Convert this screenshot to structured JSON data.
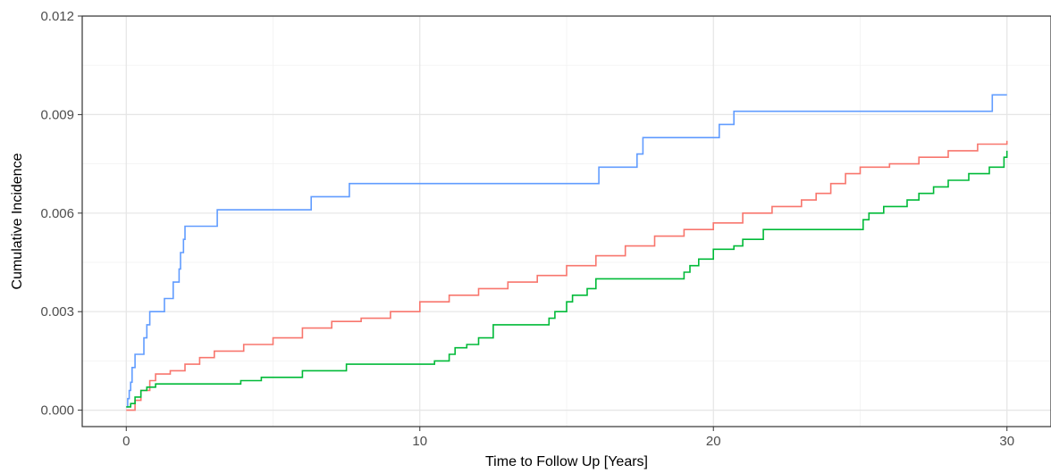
{
  "chart_data": {
    "type": "line",
    "step": true,
    "xlabel": "Time to Follow Up [Years]",
    "ylabel": "Cumulative Incidence",
    "xlim": [
      -1.5,
      31.5
    ],
    "ylim": [
      -0.0005,
      0.012
    ],
    "x_ticks": [
      0,
      10,
      20,
      30
    ],
    "x_tick_labels": [
      "0",
      "10",
      "20",
      "30"
    ],
    "y_ticks": [
      0,
      0.003,
      0.006,
      0.009,
      0.012
    ],
    "y_tick_labels": [
      "0.000",
      "0.003",
      "0.006",
      "0.009",
      "0.012"
    ],
    "grid": true,
    "legend": "none",
    "series": [
      {
        "color": "#619CFF",
        "x": [
          0,
          0.05,
          0.1,
          0.15,
          0.2,
          0.3,
          0.4,
          0.6,
          0.7,
          0.8,
          1.2,
          1.3,
          1.5,
          1.6,
          1.7,
          1.8,
          1.85,
          1.9,
          1.95,
          2.0,
          2.1,
          3.1,
          6.3,
          7.6,
          16.1,
          17.4,
          17.6,
          20.2,
          20.7,
          29.5,
          30.0
        ],
        "y": [
          0.0001,
          0.00035,
          0.0006,
          0.00085,
          0.0013,
          0.0017,
          0.0017,
          0.0022,
          0.0026,
          0.003,
          0.003,
          0.0034,
          0.0034,
          0.0039,
          0.0039,
          0.0043,
          0.0048,
          0.0048,
          0.0052,
          0.0056,
          0.0056,
          0.0061,
          0.0065,
          0.0069,
          0.0074,
          0.0078,
          0.0083,
          0.0087,
          0.0091,
          0.0096,
          0.0096
        ]
      },
      {
        "color": "#F8766D",
        "x": [
          0,
          0.3,
          0.5,
          0.8,
          1.0,
          1.5,
          2.0,
          2.5,
          3.0,
          4.0,
          5.0,
          6.0,
          7.0,
          8.0,
          9.0,
          10.0,
          11.0,
          12.0,
          13.0,
          14.0,
          15.0,
          16.0,
          17.0,
          18.0,
          19.0,
          20.0,
          21.0,
          22.0,
          23.0,
          23.5,
          24.0,
          24.5,
          25.0,
          26.0,
          27.0,
          28.0,
          29.0,
          30.0
        ],
        "y": [
          0.0,
          0.0003,
          0.0006,
          0.0009,
          0.0011,
          0.0012,
          0.0014,
          0.0016,
          0.0018,
          0.002,
          0.0022,
          0.0025,
          0.0027,
          0.0028,
          0.003,
          0.0033,
          0.0035,
          0.0037,
          0.0039,
          0.0041,
          0.0044,
          0.0047,
          0.005,
          0.0053,
          0.0055,
          0.0057,
          0.006,
          0.0062,
          0.0064,
          0.0066,
          0.0069,
          0.0072,
          0.0074,
          0.0075,
          0.0077,
          0.0079,
          0.0081,
          0.0082
        ]
      },
      {
        "color": "#00BA38",
        "x": [
          0,
          0.15,
          0.3,
          0.5,
          0.7,
          1.0,
          3.2,
          3.9,
          4.6,
          6.0,
          7.5,
          10.5,
          11.0,
          11.2,
          11.6,
          12.0,
          12.5,
          14.4,
          14.6,
          15.0,
          15.2,
          15.7,
          16.0,
          16.2,
          19.0,
          19.2,
          19.5,
          20.0,
          20.7,
          21.0,
          21.7,
          22.2,
          25.1,
          25.3,
          25.8,
          26.6,
          27.0,
          27.5,
          28.0,
          28.7,
          29.4,
          29.9,
          30.0
        ],
        "y": [
          0.0001,
          0.0002,
          0.0004,
          0.0006,
          0.0007,
          0.0008,
          0.0008,
          0.0009,
          0.001,
          0.0012,
          0.0014,
          0.0015,
          0.0017,
          0.0019,
          0.002,
          0.0022,
          0.0026,
          0.0028,
          0.003,
          0.0033,
          0.0035,
          0.0037,
          0.004,
          0.004,
          0.0042,
          0.0044,
          0.0046,
          0.0049,
          0.005,
          0.0052,
          0.0055,
          0.0055,
          0.0058,
          0.006,
          0.0062,
          0.0064,
          0.0066,
          0.0068,
          0.007,
          0.0072,
          0.0074,
          0.0077,
          0.0079
        ]
      }
    ]
  }
}
